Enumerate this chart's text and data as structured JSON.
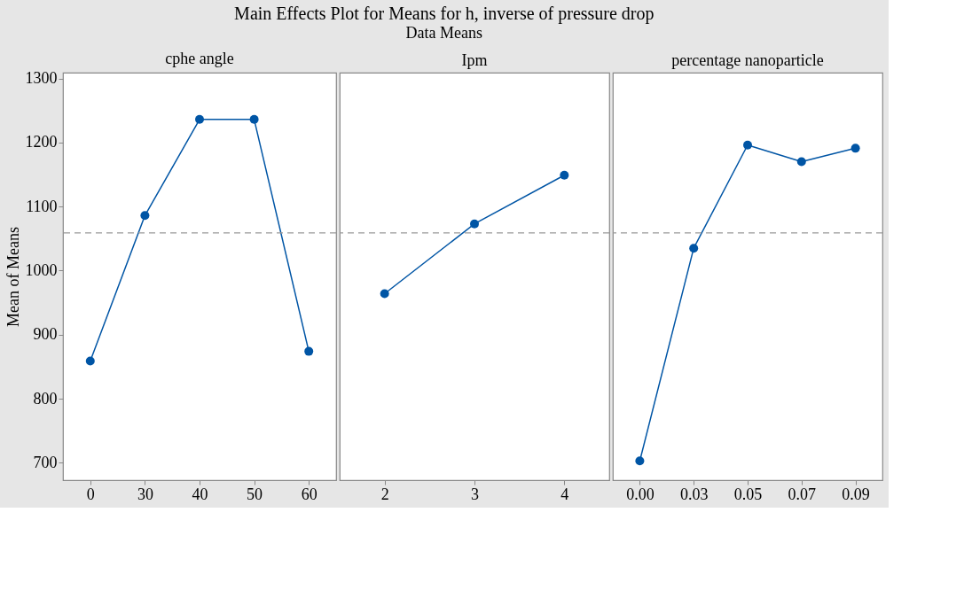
{
  "chart_data": [
    {
      "type": "line",
      "xlabel": "cphe angle",
      "ylabel": "Mean of Means",
      "categories": [
        "0",
        "30",
        "40",
        "50",
        "60"
      ],
      "series": [
        {
          "color": "#0055a5",
          "values": [
            859,
            1086,
            1236,
            1236,
            874
          ]
        }
      ],
      "ylim": [
        673,
        1309
      ],
      "yticks": [
        700,
        800,
        900,
        1000,
        1100,
        1200,
        1300
      ],
      "ref_lines": [
        {
          "axis": "y",
          "value": 1059,
          "color": "#999999",
          "line_style": "dashed"
        }
      ],
      "marker": "circle",
      "grid": false
    },
    {
      "type": "line",
      "title": "Main Effects Plot for Means for h, inverse of pressure drop",
      "subtitle": "Data Means",
      "xlabel": "Ipm",
      "categories": [
        "2",
        "3",
        "4"
      ],
      "series": [
        {
          "color": "#0055a5",
          "values": [
            964,
            1073,
            1149
          ]
        }
      ],
      "ylim": [
        673,
        1309
      ],
      "tick_labels": "x",
      "ref_lines": [
        {
          "axis": "y",
          "value": 1059,
          "color": "#999999",
          "line_style": "dashed"
        }
      ],
      "marker": "circle",
      "grid": false
    },
    {
      "type": "line",
      "xlabel": "percentage nanoparticle",
      "categories": [
        "0.00",
        "0.03",
        "0.05",
        "0.07",
        "0.09"
      ],
      "series": [
        {
          "color": "#0055a5",
          "values": [
            703,
            1035,
            1196,
            1170,
            1191
          ]
        }
      ],
      "ylim": [
        673,
        1309
      ],
      "tick_labels": "x",
      "ref_lines": [
        {
          "axis": "y",
          "value": 1059,
          "color": "#999999",
          "line_style": "dashed"
        }
      ],
      "marker": "circle",
      "grid": false
    }
  ]
}
